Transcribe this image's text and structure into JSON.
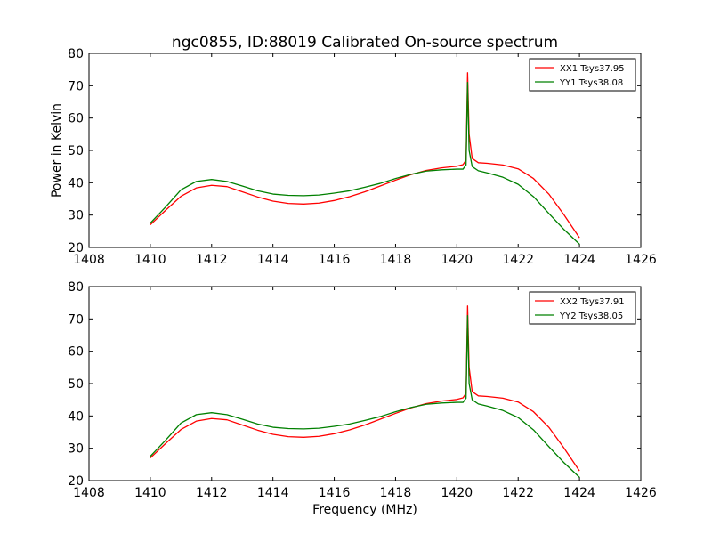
{
  "title": "ngc0855, ID:88019 Calibrated On-source spectrum",
  "ylabel": "Power in Kelvin",
  "xlabel": "Frequency (MHz)",
  "colors": {
    "red": "#ff0000",
    "green": "#008000"
  },
  "chart_data": [
    {
      "type": "line",
      "xlim": [
        1408,
        1426
      ],
      "ylim": [
        20,
        80
      ],
      "xticks": [
        1408,
        1410,
        1412,
        1414,
        1416,
        1418,
        1420,
        1422,
        1424,
        1426
      ],
      "yticks": [
        20,
        30,
        40,
        50,
        60,
        70,
        80
      ],
      "legend": "top-right",
      "series": [
        {
          "name": "XX1 Tsys37.95",
          "color": "#ff0000",
          "x": [
            1410,
            1410.5,
            1411,
            1411.5,
            1412,
            1412.5,
            1413,
            1413.5,
            1414,
            1414.5,
            1415,
            1415.5,
            1416,
            1416.5,
            1417,
            1417.5,
            1418,
            1418.5,
            1419,
            1419.5,
            1420,
            1420.2,
            1420.3,
            1420.35,
            1420.4,
            1420.5,
            1420.7,
            1421,
            1421.5,
            1422,
            1422.5,
            1423,
            1423.5,
            1424
          ],
          "y": [
            27,
            31.5,
            35.8,
            38.4,
            39.2,
            38.8,
            37.2,
            35.6,
            34.3,
            33.6,
            33.4,
            33.7,
            34.5,
            35.7,
            37.2,
            39.0,
            40.8,
            42.5,
            43.8,
            44.6,
            45.1,
            45.6,
            47,
            74,
            55,
            47.5,
            46.2,
            46.0,
            45.5,
            44.3,
            41.3,
            36.5,
            30,
            23
          ]
        },
        {
          "name": "YY1 Tsys38.08",
          "color": "#008000",
          "x": [
            1410,
            1410.5,
            1411,
            1411.5,
            1412,
            1412.5,
            1413,
            1413.5,
            1414,
            1414.5,
            1415,
            1415.5,
            1416,
            1416.5,
            1417,
            1417.5,
            1418,
            1418.5,
            1419,
            1419.5,
            1420,
            1420.2,
            1420.3,
            1420.35,
            1420.4,
            1420.5,
            1420.7,
            1421,
            1421.5,
            1422,
            1422.5,
            1423,
            1423.5,
            1424
          ],
          "y": [
            27.5,
            32.5,
            37.8,
            40.4,
            41.0,
            40.4,
            39.0,
            37.5,
            36.5,
            36.1,
            36.0,
            36.2,
            36.8,
            37.5,
            38.6,
            39.8,
            41.3,
            42.6,
            43.6,
            44.0,
            44.2,
            44.2,
            45.5,
            71,
            50,
            45,
            43.7,
            43.0,
            41.7,
            39.5,
            35.7,
            30.5,
            25.5,
            21
          ]
        }
      ]
    },
    {
      "type": "line",
      "xlim": [
        1408,
        1426
      ],
      "ylim": [
        20,
        80
      ],
      "xticks": [
        1408,
        1410,
        1412,
        1414,
        1416,
        1418,
        1420,
        1422,
        1424,
        1426
      ],
      "yticks": [
        20,
        30,
        40,
        50,
        60,
        70,
        80
      ],
      "legend": "top-right",
      "series": [
        {
          "name": "XX2 Tsys37.91",
          "color": "#ff0000",
          "x": [
            1410,
            1410.5,
            1411,
            1411.5,
            1412,
            1412.5,
            1413,
            1413.5,
            1414,
            1414.5,
            1415,
            1415.5,
            1416,
            1416.5,
            1417,
            1417.5,
            1418,
            1418.5,
            1419,
            1419.5,
            1420,
            1420.2,
            1420.3,
            1420.35,
            1420.4,
            1420.5,
            1420.7,
            1421,
            1421.5,
            1422,
            1422.5,
            1423,
            1423.5,
            1424
          ],
          "y": [
            27,
            31.5,
            35.8,
            38.4,
            39.2,
            38.8,
            37.2,
            35.6,
            34.3,
            33.6,
            33.4,
            33.7,
            34.5,
            35.7,
            37.2,
            39.0,
            40.8,
            42.5,
            43.8,
            44.6,
            45.1,
            45.6,
            47,
            74,
            55,
            47.5,
            46.2,
            46.0,
            45.5,
            44.3,
            41.3,
            36.5,
            30,
            23
          ]
        },
        {
          "name": "YY2 Tsys38.05",
          "color": "#008000",
          "x": [
            1410,
            1410.5,
            1411,
            1411.5,
            1412,
            1412.5,
            1413,
            1413.5,
            1414,
            1414.5,
            1415,
            1415.5,
            1416,
            1416.5,
            1417,
            1417.5,
            1418,
            1418.5,
            1419,
            1419.5,
            1420,
            1420.2,
            1420.3,
            1420.35,
            1420.4,
            1420.5,
            1420.7,
            1421,
            1421.5,
            1422,
            1422.5,
            1423,
            1423.5,
            1424
          ],
          "y": [
            27.5,
            32.5,
            37.8,
            40.4,
            41.0,
            40.4,
            39.0,
            37.5,
            36.5,
            36.1,
            36.0,
            36.2,
            36.8,
            37.5,
            38.6,
            39.8,
            41.3,
            42.6,
            43.6,
            44.0,
            44.2,
            44.2,
            45.5,
            71,
            50,
            45,
            43.7,
            43.0,
            41.7,
            39.5,
            35.7,
            30.5,
            25.5,
            21
          ]
        }
      ]
    }
  ]
}
